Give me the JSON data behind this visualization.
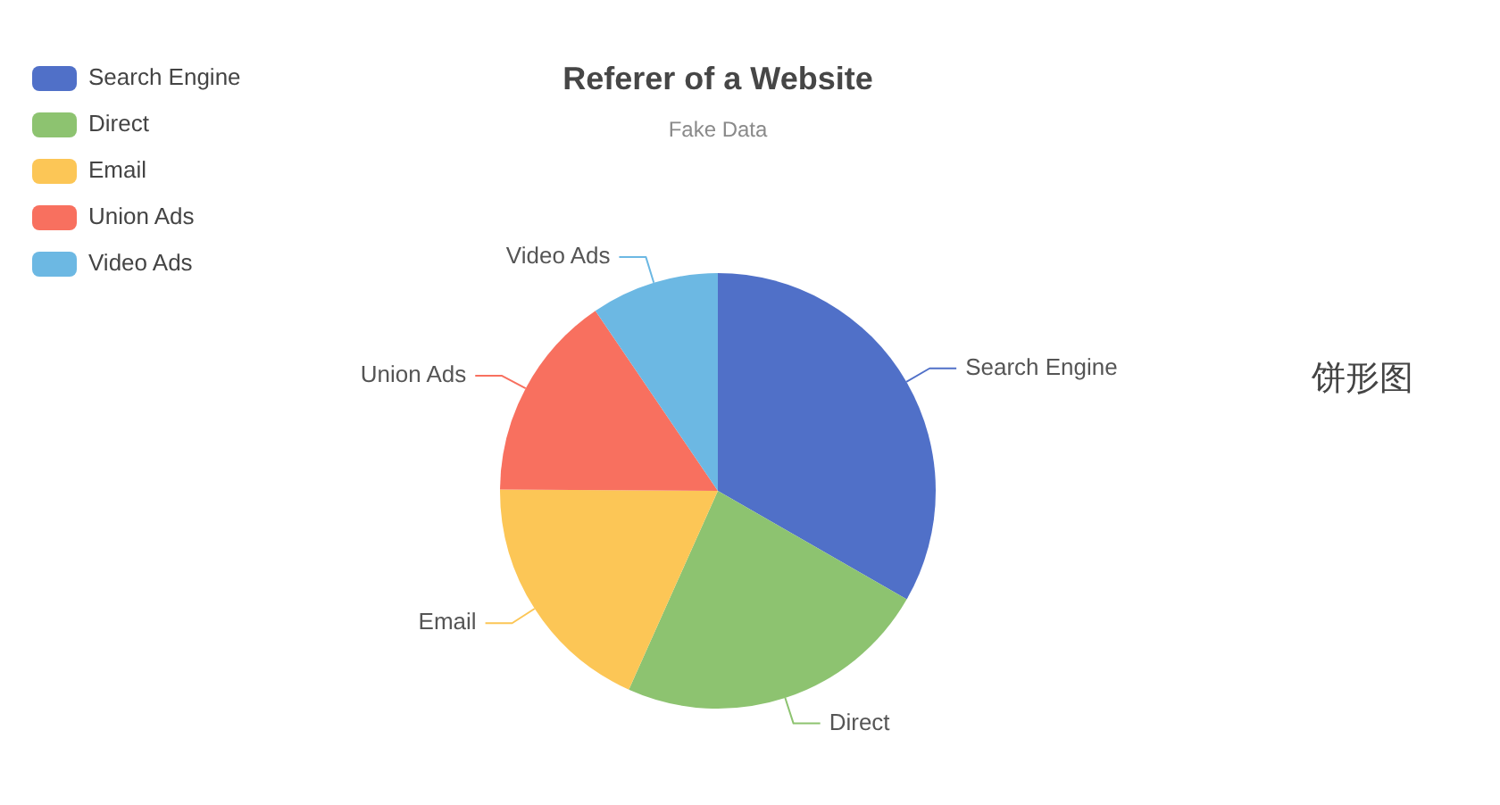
{
  "chart_data": {
    "type": "pie",
    "title": "Referer of a Website",
    "subtitle": "Fake Data",
    "categories": [
      "Search Engine",
      "Direct",
      "Email",
      "Union Ads",
      "Video Ads"
    ],
    "values": [
      33.3,
      23.4,
      18.4,
      15.4,
      9.5
    ],
    "colors": [
      "#5070c8",
      "#8dc370",
      "#fcc656",
      "#f8705f",
      "#6cb8e3"
    ],
    "legend": "top left",
    "annotations": [
      "饼形图"
    ]
  }
}
